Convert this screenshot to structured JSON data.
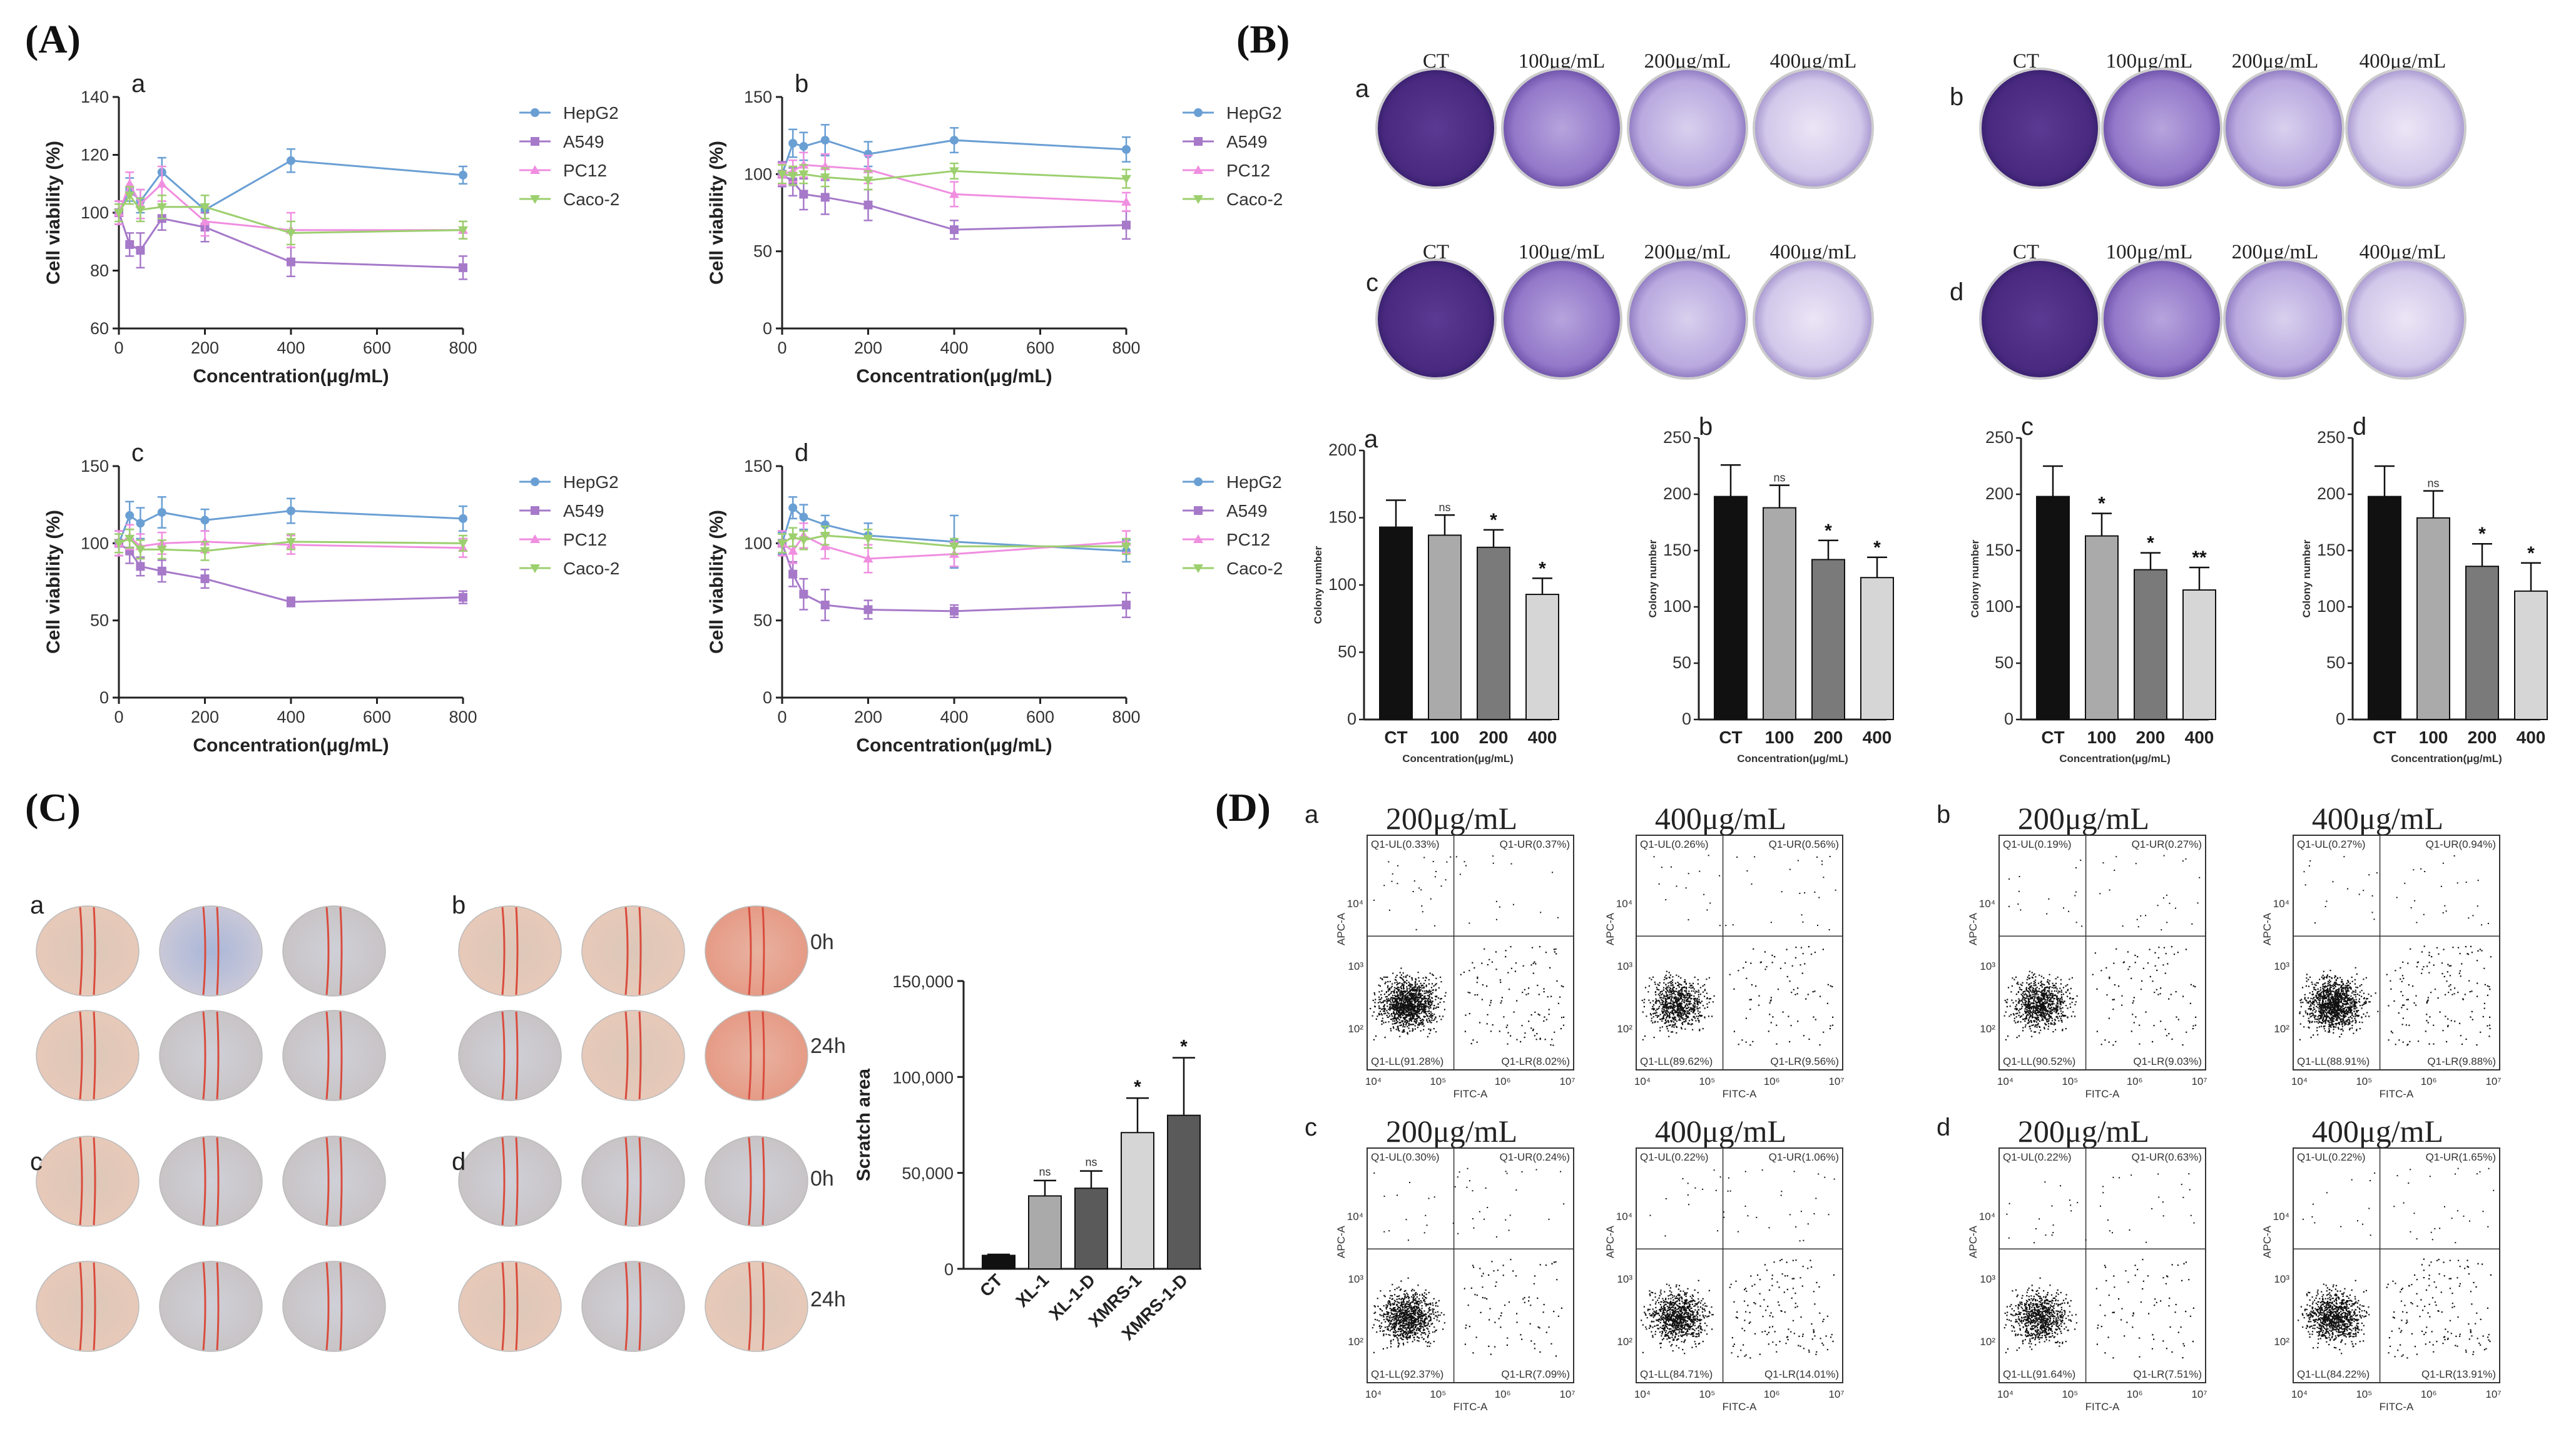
{
  "panels": {
    "A": "(A)",
    "B": "(B)",
    "C": "(C)",
    "D": "(D)"
  },
  "sub": {
    "a": "a",
    "b": "b",
    "c": "c",
    "d": "d"
  },
  "colors": {
    "HepG2": "#6a9fd4",
    "A549": "#a679c9",
    "PC12": "#f08ee0",
    "Caco-2": "#9ccf6e",
    "bar_ct": "#111111",
    "bar_100": "#aaaaaa",
    "bar_200": "#7a7a7a",
    "bar_400": "#d6d6d6",
    "bar_d": "#5a5a5a"
  },
  "chart_data": [
    {
      "type": "line",
      "id": "A-a",
      "ylabel": "Cell viability (%)",
      "xlabel": "Concentration(μg/mL)",
      "xlim": [
        0,
        800
      ],
      "ylim": [
        60,
        140
      ],
      "xticks": [
        0,
        200,
        400,
        600,
        800
      ],
      "yticks": [
        60,
        80,
        100,
        120,
        140
      ],
      "x": [
        0,
        25,
        50,
        100,
        200,
        400,
        800
      ],
      "series": [
        {
          "name": "HepG2",
          "values": [
            100,
            108,
            104,
            114,
            101,
            118,
            113
          ],
          "err": [
            4,
            4,
            4,
            5,
            5,
            4,
            3
          ]
        },
        {
          "name": "A549",
          "values": [
            100,
            89,
            87,
            98,
            95,
            83,
            81
          ],
          "err": [
            4,
            4,
            6,
            4,
            5,
            5,
            4
          ]
        },
        {
          "name": "PC12",
          "values": [
            100,
            110,
            103,
            110,
            97,
            94,
            94
          ],
          "err": [
            4,
            4,
            5,
            6,
            5,
            6,
            3
          ]
        },
        {
          "name": "Caco-2",
          "values": [
            100,
            106,
            101,
            102,
            102,
            93,
            94
          ],
          "err": [
            3,
            3,
            4,
            4,
            4,
            4,
            3
          ]
        }
      ]
    },
    {
      "type": "line",
      "id": "A-b",
      "ylabel": "Cell viability (%)",
      "xlabel": "Concentration(μg/mL)",
      "xlim": [
        0,
        800
      ],
      "ylim": [
        0,
        150
      ],
      "xticks": [
        0,
        200,
        400,
        600,
        800
      ],
      "yticks": [
        0,
        50,
        100,
        150
      ],
      "x": [
        0,
        25,
        50,
        100,
        200,
        400,
        800
      ],
      "series": [
        {
          "name": "HepG2",
          "values": [
            100,
            120,
            118,
            122,
            113,
            122,
            116
          ],
          "err": [
            8,
            9,
            9,
            10,
            8,
            8,
            8
          ]
        },
        {
          "name": "A549",
          "values": [
            100,
            95,
            87,
            85,
            80,
            64,
            67
          ],
          "err": [
            8,
            9,
            10,
            11,
            10,
            6,
            9
          ]
        },
        {
          "name": "PC12",
          "values": [
            100,
            102,
            106,
            105,
            103,
            87,
            82
          ],
          "err": [
            7,
            7,
            8,
            8,
            9,
            8,
            6
          ]
        },
        {
          "name": "Caco-2",
          "values": [
            100,
            99,
            100,
            98,
            96,
            102,
            97
          ],
          "err": [
            6,
            6,
            6,
            6,
            6,
            5,
            6
          ]
        }
      ]
    },
    {
      "type": "line",
      "id": "A-c",
      "ylabel": "Cell viability (%)",
      "xlabel": "Concentration(μg/mL)",
      "xlim": [
        0,
        800
      ],
      "ylim": [
        0,
        150
      ],
      "xticks": [
        0,
        200,
        400,
        600,
        800
      ],
      "yticks": [
        0,
        50,
        100,
        150
      ],
      "x": [
        0,
        25,
        50,
        100,
        200,
        400,
        800
      ],
      "series": [
        {
          "name": "HepG2",
          "values": [
            100,
            118,
            113,
            120,
            115,
            121,
            116
          ],
          "err": [
            8,
            9,
            10,
            10,
            7,
            8,
            8
          ]
        },
        {
          "name": "A549",
          "values": [
            100,
            95,
            85,
            82,
            77,
            62,
            65
          ],
          "err": [
            8,
            8,
            6,
            7,
            6,
            3,
            4
          ]
        },
        {
          "name": "PC12",
          "values": [
            100,
            104,
            98,
            100,
            101,
            99,
            97
          ],
          "err": [
            8,
            8,
            8,
            7,
            7,
            6,
            6
          ]
        },
        {
          "name": "Caco-2",
          "values": [
            100,
            103,
            96,
            96,
            95,
            101,
            100
          ],
          "err": [
            6,
            6,
            6,
            6,
            6,
            5,
            5
          ]
        }
      ]
    },
    {
      "type": "line",
      "id": "A-d",
      "ylabel": "Cell viability (%)",
      "xlabel": "Concentration(μg/mL)",
      "xlim": [
        0,
        800
      ],
      "ylim": [
        0,
        150
      ],
      "xticks": [
        0,
        200,
        400,
        600,
        800
      ],
      "yticks": [
        0,
        50,
        100,
        150
      ],
      "x": [
        0,
        25,
        50,
        100,
        200,
        400,
        800
      ],
      "series": [
        {
          "name": "HepG2",
          "values": [
            100,
            123,
            117,
            112,
            105,
            101,
            95
          ],
          "err": [
            7,
            7,
            8,
            6,
            8,
            17,
            7
          ]
        },
        {
          "name": "A549",
          "values": [
            100,
            80,
            67,
            60,
            57,
            56,
            60
          ],
          "err": [
            8,
            8,
            10,
            10,
            6,
            4,
            8
          ]
        },
        {
          "name": "PC12",
          "values": [
            100,
            95,
            105,
            98,
            90,
            93,
            101
          ],
          "err": [
            8,
            8,
            8,
            8,
            9,
            8,
            7
          ]
        },
        {
          "name": "Caco-2",
          "values": [
            100,
            104,
            102,
            105,
            103,
            98,
            98
          ],
          "err": [
            6,
            6,
            6,
            6,
            6,
            5,
            5
          ]
        }
      ]
    },
    {
      "type": "bar",
      "id": "B-a",
      "categories": [
        "CT",
        "100",
        "200",
        "400"
      ],
      "values": [
        143,
        137,
        128,
        93
      ],
      "err": [
        20,
        15,
        13,
        12
      ],
      "sig": [
        "",
        "ns",
        "*",
        "*"
      ],
      "ylabel": "Colony number",
      "xlabel": "Concentration(μg/mL)",
      "ylim": [
        0,
        200
      ],
      "yticks": [
        0,
        50,
        100,
        150,
        200
      ]
    },
    {
      "type": "bar",
      "id": "B-b",
      "categories": [
        "CT",
        "100",
        "200",
        "400"
      ],
      "values": [
        198,
        188,
        142,
        126
      ],
      "err": [
        28,
        20,
        17,
        18
      ],
      "sig": [
        "",
        "ns",
        "*",
        "*"
      ],
      "ylabel": "Colony number",
      "xlabel": "Concentration(μg/mL)",
      "ylim": [
        0,
        250
      ],
      "yticks": [
        0,
        50,
        100,
        150,
        200,
        250
      ]
    },
    {
      "type": "bar",
      "id": "B-c",
      "categories": [
        "CT",
        "100",
        "200",
        "400"
      ],
      "values": [
        198,
        163,
        133,
        115
      ],
      "err": [
        27,
        20,
        15,
        20
      ],
      "sig": [
        "",
        "*",
        "*",
        "**"
      ],
      "ylabel": "Colony number",
      "xlabel": "Concentration(μg/mL)",
      "ylim": [
        0,
        250
      ],
      "yticks": [
        0,
        50,
        100,
        150,
        200,
        250
      ]
    },
    {
      "type": "bar",
      "id": "B-d",
      "categories": [
        "CT",
        "100",
        "200",
        "400"
      ],
      "values": [
        198,
        179,
        136,
        114
      ],
      "err": [
        27,
        24,
        20,
        25
      ],
      "sig": [
        "",
        "ns",
        "*",
        "*"
      ],
      "ylabel": "Colony number",
      "xlabel": "Concentration(μg/mL)",
      "ylim": [
        0,
        250
      ],
      "yticks": [
        0,
        50,
        100,
        150,
        200,
        250
      ]
    },
    {
      "type": "bar",
      "id": "C-scratch",
      "categories": [
        "CT",
        "XL-1",
        "XL-1-D",
        "XMRS-1",
        "XMRS-1-D"
      ],
      "values": [
        7000,
        38000,
        42000,
        71000,
        80000
      ],
      "err": [
        500,
        8000,
        9000,
        18000,
        30000
      ],
      "sig": [
        "",
        "ns",
        "ns",
        "*",
        "*"
      ],
      "ylabel": "Scratch area",
      "xlabel": "",
      "ylim": [
        0,
        150000
      ],
      "yticks": [
        "0",
        "50,000",
        "100,000",
        "150,000"
      ]
    }
  ],
  "plateLabels": {
    "ct": "CT",
    "c100": "100μg/mL",
    "c200": "200μg/mL",
    "c400": "400μg/mL"
  },
  "timeLabels": {
    "t0": "0h",
    "t24": "24h"
  },
  "flow": {
    "conc200": "200μg/mL",
    "conc400": "400μg/mL",
    "xlabel": "FITC-A",
    "ylabel": "APC-A",
    "plots": [
      {
        "ul": "Q1-UL(0.33%)",
        "ur": "Q1-UR(0.37%)",
        "ll": "Q1-LL(91.28%)",
        "lr": "Q1-LR(8.02%)"
      },
      {
        "ul": "Q1-UL(0.26%)",
        "ur": "Q1-UR(0.56%)",
        "ll": "Q1-LL(89.62%)",
        "lr": "Q1-LR(9.56%)"
      },
      {
        "ul": "Q1-UL(0.19%)",
        "ur": "Q1-UR(0.27%)",
        "ll": "Q1-LL(90.52%)",
        "lr": "Q1-LR(9.03%)"
      },
      {
        "ul": "Q1-UL(0.27%)",
        "ur": "Q1-UR(0.94%)",
        "ll": "Q1-LL(88.91%)",
        "lr": "Q1-LR(9.88%)"
      },
      {
        "ul": "Q1-UL(0.30%)",
        "ur": "Q1-UR(0.24%)",
        "ll": "Q1-LL(92.37%)",
        "lr": "Q1-LR(7.09%)"
      },
      {
        "ul": "Q1-UL(0.22%)",
        "ur": "Q1-UR(1.06%)",
        "ll": "Q1-LL(84.71%)",
        "lr": "Q1-LR(14.01%)"
      },
      {
        "ul": "Q1-UL(0.22%)",
        "ur": "Q1-UR(0.63%)",
        "ll": "Q1-LL(91.64%)",
        "lr": "Q1-LR(7.51%)"
      },
      {
        "ul": "Q1-UL(0.22%)",
        "ur": "Q1-UR(1.65%)",
        "ll": "Q1-LL(84.22%)",
        "lr": "Q1-LR(13.91%)"
      }
    ]
  }
}
